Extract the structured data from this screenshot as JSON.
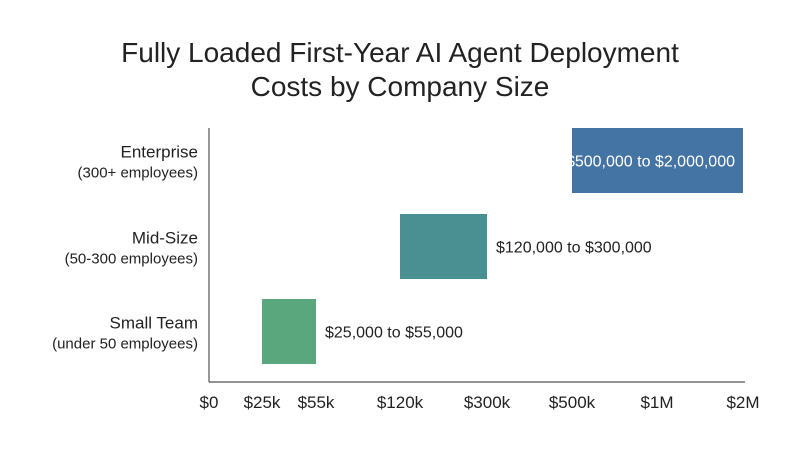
{
  "chart_data": {
    "type": "bar",
    "orientation": "horizontal-range",
    "title": "Fully Loaded First-Year AI Agent Deployment Costs by Company Size",
    "title_lines": [
      "Fully Loaded First-Year AI Agent Deployment",
      "Costs by Company Size"
    ],
    "xlabel": "",
    "ylabel": "",
    "x_ticks": [
      {
        "value": 0,
        "label": "$0"
      },
      {
        "value": 25000,
        "label": "$25k"
      },
      {
        "value": 55000,
        "label": "$55k"
      },
      {
        "value": 120000,
        "label": "$120k"
      },
      {
        "value": 300000,
        "label": "$300k"
      },
      {
        "value": 500000,
        "label": "$500k"
      },
      {
        "value": 1000000,
        "label": "$1M"
      },
      {
        "value": 2000000,
        "label": "$2M"
      }
    ],
    "xlim": [
      0,
      2000000
    ],
    "grid": false,
    "categories": [
      {
        "name": "Enterprise",
        "sub": "(300+ employees)",
        "low": 500000,
        "high": 2000000,
        "label": "$500,000 to $2,000,000",
        "color": "#4474a3",
        "label_inside": true
      },
      {
        "name": "Mid-Size",
        "sub": "(50-300 employees)",
        "low": 120000,
        "high": 300000,
        "label": "$120,000 to $300,000",
        "color": "#4a9092",
        "label_inside": false
      },
      {
        "name": "Small Team",
        "sub": "(under 50 employees)",
        "low": 25000,
        "high": 55000,
        "label": "$25,000 to $55,000",
        "color": "#5aa77e",
        "label_inside": false
      }
    ]
  }
}
